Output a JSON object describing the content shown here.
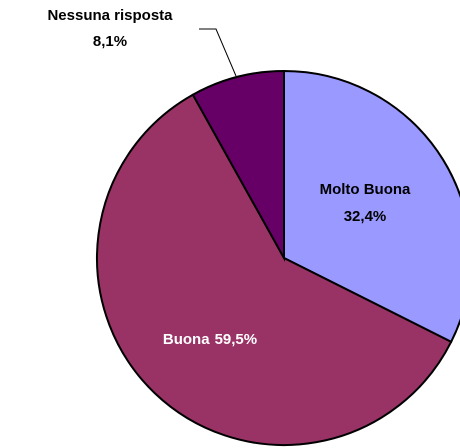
{
  "chart_data": {
    "type": "pie",
    "categories": [
      "Molto Buona",
      "Buona",
      "Nessuna risposta"
    ],
    "values": [
      32.4,
      59.5,
      8.1
    ],
    "value_labels": [
      "32,4%",
      "59,5%",
      "8,1%"
    ],
    "colors": [
      "#9999ff",
      "#993366",
      "#660066"
    ]
  }
}
